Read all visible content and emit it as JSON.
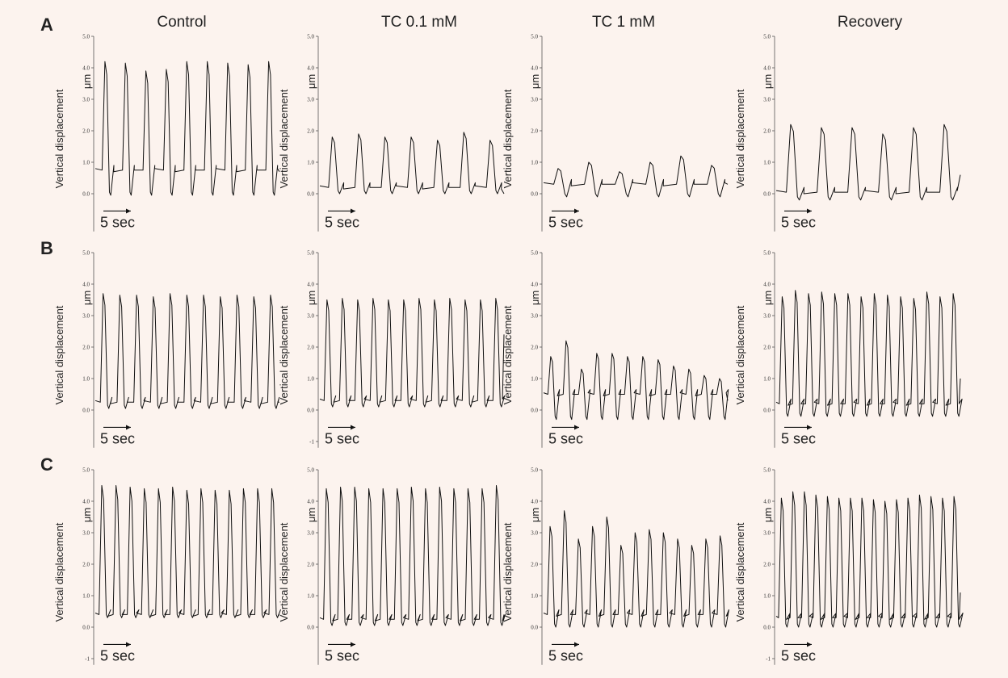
{
  "columns": [
    "Control",
    "TC 0.1 mM",
    "TC 1 mM",
    "Recovery"
  ],
  "rows": [
    "A",
    "B",
    "C"
  ],
  "axis_label": "Vertical displacement",
  "unit": "μm",
  "scale_bar": "5 sec",
  "chart_data": [
    {
      "type": "line",
      "row": "A",
      "column": "Control",
      "ylim": [
        -1,
        5
      ],
      "yticks": [
        "0.0",
        "1.0",
        "2.0",
        "3.0",
        "4.0",
        "5.0"
      ],
      "baseline": 0.75,
      "peaks": [
        4.2,
        4.15,
        3.9,
        3.95,
        4.2,
        4.2,
        4.15,
        4.1,
        4.2
      ],
      "trough": -0.05,
      "end": 0.7
    },
    {
      "type": "line",
      "row": "A",
      "column": "TC 0.1 mM",
      "ylim": [
        -1,
        5
      ],
      "yticks": [
        "0.0",
        "1.0",
        "2.0",
        "3.0",
        "4.0",
        "5.0"
      ],
      "baseline": 0.2,
      "peaks": [
        1.8,
        1.9,
        1.8,
        1.8,
        1.7,
        1.95,
        1.7
      ],
      "trough": 0.0,
      "end": 0.0
    },
    {
      "type": "line",
      "row": "A",
      "column": "TC 1 mM",
      "ylim": [
        -1,
        5
      ],
      "yticks": [
        "0.0",
        "1.0",
        "2.0",
        "3.0",
        "4.0",
        "5.0"
      ],
      "baseline": 0.3,
      "peaks": [
        0.8,
        1.0,
        0.7,
        1.0,
        1.2,
        0.9
      ],
      "trough": -0.1,
      "end": 0.3
    },
    {
      "type": "line",
      "row": "A",
      "column": "Recovery",
      "ylim": [
        -1,
        5
      ],
      "yticks": [
        "0.0",
        "1.0",
        "2.0",
        "3.0",
        "4.0",
        "5.0"
      ],
      "baseline": 0.05,
      "peaks": [
        2.2,
        2.1,
        2.1,
        1.9,
        2.1,
        2.2
      ],
      "trough": -0.2,
      "end": 0.6
    },
    {
      "type": "line",
      "row": "B",
      "column": "Control",
      "ylim": [
        -1,
        5
      ],
      "yticks": [
        "0.0",
        "1.0",
        "2.0",
        "3.0",
        "4.0",
        "5.0"
      ],
      "baseline": 0.25,
      "peaks": [
        3.7,
        3.65,
        3.65,
        3.6,
        3.7,
        3.65,
        3.65,
        3.6,
        3.65,
        3.6,
        3.65
      ],
      "trough": 0.05,
      "end": 0.25
    },
    {
      "type": "line",
      "row": "B",
      "column": "TC 0.1 mM",
      "ylim": [
        -1,
        5
      ],
      "yticks": [
        "-1",
        "0.0",
        "1.0",
        "2.0",
        "3.0",
        "4.0",
        "5.0"
      ],
      "baseline": 0.3,
      "peaks": [
        3.5,
        3.55,
        3.5,
        3.55,
        3.5,
        3.5,
        3.55,
        3.5,
        3.55,
        3.5,
        3.5,
        3.55
      ],
      "trough": 0.1,
      "end": 2.4
    },
    {
      "type": "line",
      "row": "B",
      "column": "TC 1 mM",
      "ylim": [
        -1,
        5
      ],
      "yticks": [
        "0.0",
        "1.0",
        "2.0",
        "3.0",
        "4.0",
        "5.0"
      ],
      "baseline": 0.5,
      "peaks": [
        1.7,
        2.2,
        1.3,
        1.8,
        1.8,
        1.7,
        1.7,
        1.6,
        1.4,
        1.3,
        1.1,
        1.0
      ],
      "trough": -0.3,
      "end": 0.3
    },
    {
      "type": "line",
      "row": "B",
      "column": "Recovery",
      "ylim": [
        -1,
        5
      ],
      "yticks": [
        "0.0",
        "1.0",
        "2.0",
        "3.0",
        "4.0",
        "5.0"
      ],
      "baseline": 0.2,
      "peaks": [
        3.6,
        3.8,
        3.7,
        3.75,
        3.7,
        3.7,
        3.6,
        3.7,
        3.65,
        3.6,
        3.55,
        3.75,
        3.6,
        3.7
      ],
      "trough": -0.2,
      "end": 1.0
    },
    {
      "type": "line",
      "row": "C",
      "column": "Control",
      "ylim": [
        -1,
        5
      ],
      "yticks": [
        "-1",
        "0.0",
        "1.0",
        "2.0",
        "3.0",
        "4.0",
        "5.0"
      ],
      "baseline": 0.4,
      "peaks": [
        4.5,
        4.5,
        4.45,
        4.4,
        4.4,
        4.45,
        4.35,
        4.4,
        4.35,
        4.35,
        4.4,
        4.4,
        4.4
      ],
      "trough": 0.3,
      "end": 0.4
    },
    {
      "type": "line",
      "row": "C",
      "column": "TC 0.1 mM",
      "ylim": [
        -1,
        5
      ],
      "yticks": [
        "0.0",
        "1.0",
        "2.0",
        "3.0",
        "4.0",
        "5.0"
      ],
      "baseline": 0.25,
      "peaks": [
        4.4,
        4.45,
        4.45,
        4.4,
        4.4,
        4.4,
        4.45,
        4.4,
        4.45,
        4.4,
        4.4,
        4.4,
        4.5
      ],
      "trough": 0.05,
      "end": 0.4
    },
    {
      "type": "line",
      "row": "C",
      "column": "TC 1 mM",
      "ylim": [
        -1,
        5
      ],
      "yticks": [
        "0.0",
        "1.0",
        "2.0",
        "3.0",
        "4.0",
        "5.0"
      ],
      "baseline": 0.4,
      "peaks": [
        3.2,
        3.7,
        2.8,
        3.2,
        3.5,
        2.6,
        3.0,
        3.1,
        3.0,
        2.8,
        2.6,
        2.8,
        2.9
      ],
      "trough": 0.0,
      "end": 0.4
    },
    {
      "type": "line",
      "row": "C",
      "column": "Recovery",
      "ylim": [
        -1,
        5
      ],
      "yticks": [
        "-1",
        "0.0",
        "1.0",
        "2.0",
        "3.0",
        "4.0",
        "5.0"
      ],
      "baseline": 0.3,
      "peaks": [
        4.1,
        4.3,
        4.3,
        4.2,
        4.15,
        4.1,
        4.1,
        4.1,
        4.05,
        4.0,
        4.05,
        4.1,
        4.2,
        4.15,
        4.1,
        4.15
      ],
      "trough": 0.0,
      "end": 1.1
    }
  ]
}
